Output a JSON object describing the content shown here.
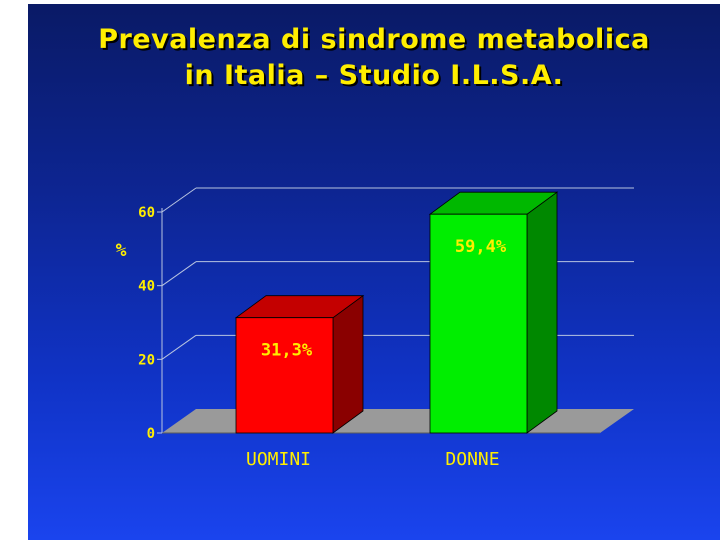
{
  "title": {
    "line1": "Prevalenza di sindrome metabolica",
    "line2": "in Italia – Studio I.L.S.A."
  },
  "chart_data": {
    "type": "bar",
    "categories": [
      "UOMINI",
      "DONNE"
    ],
    "values": [
      31.3,
      59.4
    ],
    "data_labels": [
      "31,3%",
      "59,4%"
    ],
    "ylabel": "%",
    "ylim": [
      0,
      60
    ],
    "yticks": [
      0,
      20,
      40,
      60
    ],
    "ytick_labels": [
      "0",
      "20",
      "40",
      "60"
    ],
    "grid": true,
    "legend": "none",
    "style": "3d",
    "colors": {
      "bars": [
        "#ff0000",
        "#00ee00"
      ],
      "bar_sides": [
        "#8a0000",
        "#008800"
      ],
      "bar_tops": [
        "#c40000",
        "#00b800"
      ],
      "labels": "#ffee00",
      "gridlines": "#b8c4e0",
      "floor": "#9a9a9a"
    }
  }
}
